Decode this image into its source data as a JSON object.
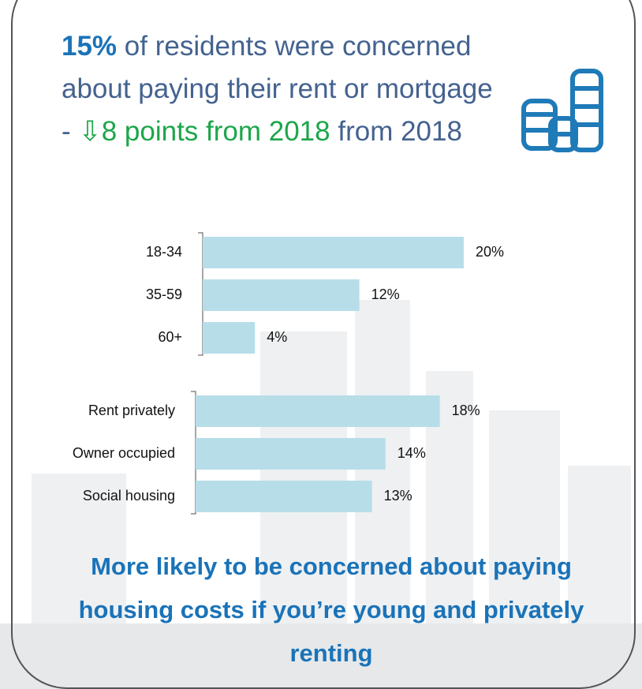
{
  "headline": {
    "highlight": "15%",
    "text": " of residents were concerned about paying their rent or mortgage - ",
    "change": "⇩8 points from 2018",
    "tail": " from 2018"
  },
  "chart_data": [
    {
      "type": "bar",
      "orientation": "horizontal",
      "categories": [
        "18-34",
        "35-59",
        "60+"
      ],
      "values": [
        20,
        12,
        4
      ],
      "value_labels": [
        "20%",
        "12%",
        "4%"
      ],
      "color": "#b7dde9"
    },
    {
      "type": "bar",
      "orientation": "horizontal",
      "categories": [
        "Rent privately",
        "Owner occupied",
        "Social housing"
      ],
      "values": [
        18,
        14,
        13
      ],
      "value_labels": [
        "18%",
        "14%",
        "13%"
      ],
      "color": "#b7dde9"
    }
  ],
  "conclusion": "More likely to be concerned about paying housing costs if you’re young and privately renting"
}
